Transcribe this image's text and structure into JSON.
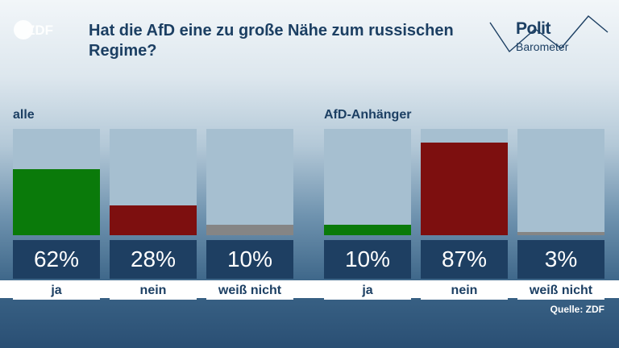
{
  "header": {
    "title": "Hat die AfD eine zu große Nähe zum russischen Regime?",
    "logo_text": "ZDF",
    "brand_line1": "Polit",
    "brand_line2": "Barometer"
  },
  "chart_data": {
    "type": "bar",
    "title": "Hat die AfD eine zu große Nähe zum russischen Regime?",
    "unit": "%",
    "ylim": [
      0,
      100
    ],
    "groups": [
      {
        "label": "alle",
        "categories": [
          "ja",
          "nein",
          "weiß nicht"
        ],
        "values": [
          62,
          28,
          10
        ],
        "value_labels": [
          "62%",
          "28%",
          "10%"
        ]
      },
      {
        "label": "AfD-Anhänger",
        "categories": [
          "ja",
          "nein",
          "weiß nicht"
        ],
        "values": [
          10,
          87,
          3
        ],
        "value_labels": [
          "10%",
          "87%",
          "3%"
        ]
      }
    ],
    "colors": {
      "ja": "#0a7a0a",
      "nein": "#7d0f0f",
      "weiß nicht": "#858585",
      "track": "#a6bfd0",
      "value_box": "#1e3f62"
    }
  },
  "footer": {
    "source": "Quelle: ZDF"
  }
}
